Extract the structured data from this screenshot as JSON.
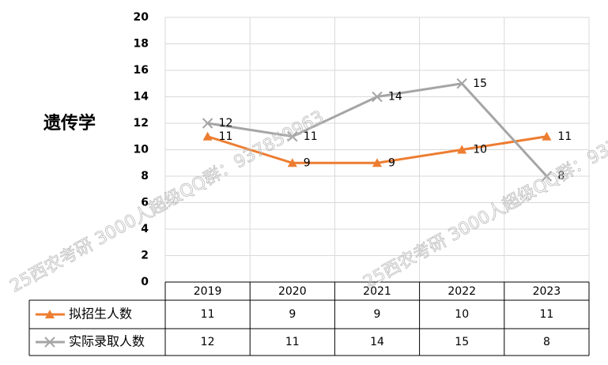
{
  "chart_data": {
    "type": "line",
    "title": "遗传学",
    "watermark": "25西农考研 3000人超级QQ群：937859963",
    "categories": [
      "2019",
      "2020",
      "2021",
      "2022",
      "2023"
    ],
    "series": [
      {
        "name": "拟招生人数",
        "color": "#ed7d31",
        "marker": "triangle",
        "values": [
          11,
          9,
          9,
          10,
          11
        ]
      },
      {
        "name": "实际录取人数",
        "color": "#a5a5a5",
        "marker": "x",
        "values": [
          12,
          11,
          14,
          15,
          8
        ]
      }
    ],
    "ylim": [
      0,
      20
    ],
    "yticks": [
      0,
      2,
      4,
      6,
      8,
      10,
      12,
      14,
      16,
      18,
      20
    ],
    "grid": true
  }
}
